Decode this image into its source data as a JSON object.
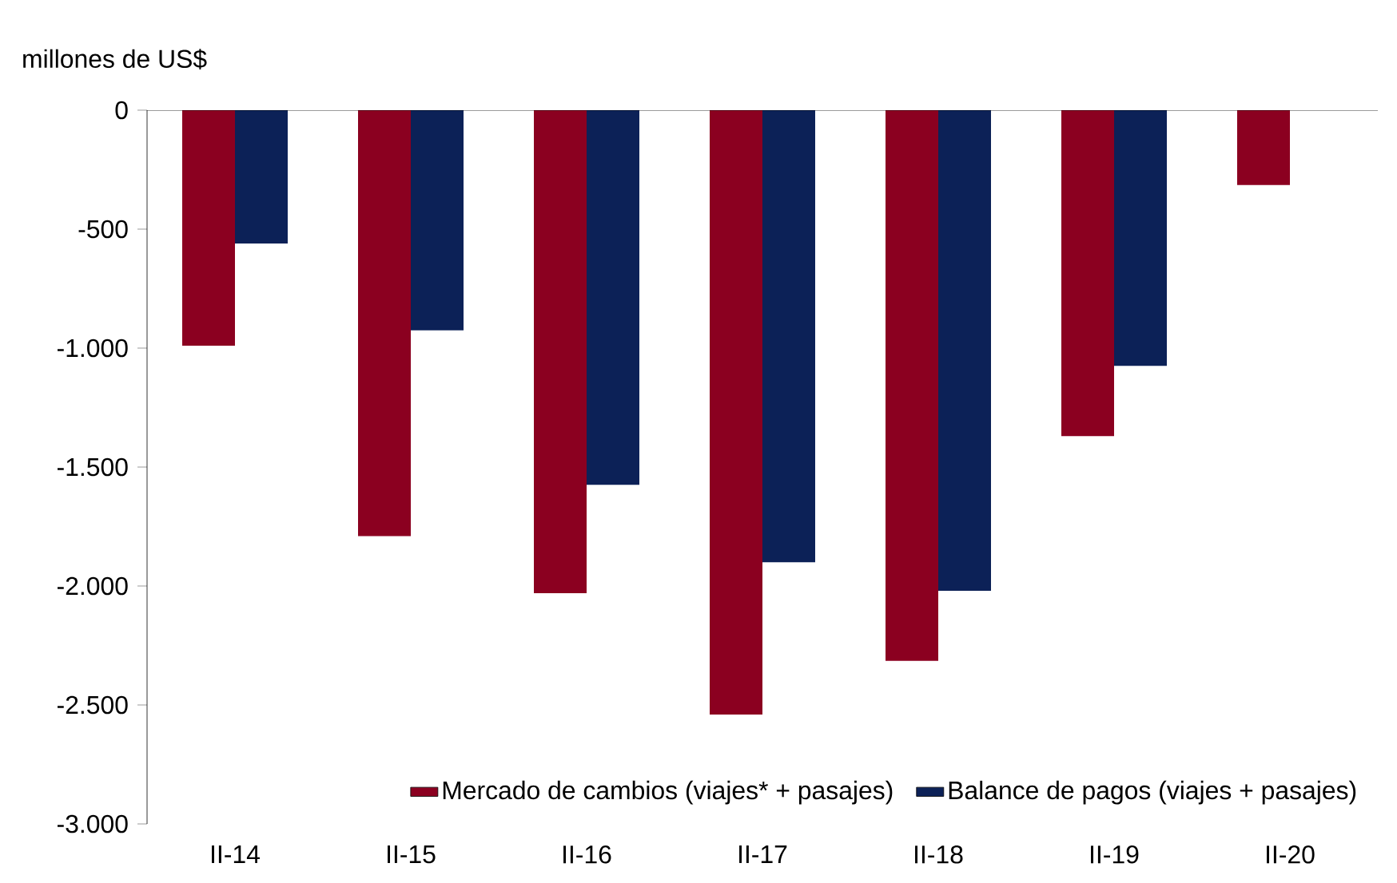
{
  "chart_data": {
    "type": "bar",
    "ylabel": "millones de US$",
    "categories": [
      "II-14",
      "II-15",
      "II-16",
      "II-17",
      "II-18",
      "II-19",
      "II-20"
    ],
    "series": [
      {
        "name": "Mercado de cambios (viajes* + pasajes)",
        "color": "#8b0020",
        "values": [
          -990,
          -1790,
          -2030,
          -2540,
          -2315,
          -1370,
          -315
        ]
      },
      {
        "name": "Balance de pagos (viajes + pasajes)",
        "color": "#0c2157",
        "values": [
          -560,
          -925,
          -1575,
          -1900,
          -2020,
          -1075,
          null
        ]
      }
    ],
    "ylim": [
      -3000,
      0
    ],
    "yticks": [
      {
        "value": -3000,
        "label": "-3.000"
      },
      {
        "value": -2500,
        "label": "-2.500"
      },
      {
        "value": -2000,
        "label": "-2.000"
      },
      {
        "value": -1500,
        "label": "-1.500"
      },
      {
        "value": -1000,
        "label": "-1.000"
      },
      -500,
      0
    ],
    "grid": false,
    "legend": "bottom right"
  }
}
